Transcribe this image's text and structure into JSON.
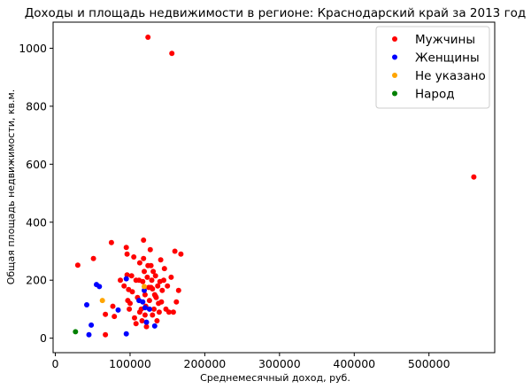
{
  "chart_data": {
    "type": "scatter",
    "title": "Доходы и площадь недвижимости в регионе: Краснодарский край за 2013 год",
    "xlabel": "Среднемесячный доход, руб.",
    "ylabel": "Общая площадь недвижимости, кв.м.",
    "xlim": [
      -3000,
      588000
    ],
    "ylim": [
      -50,
      1090
    ],
    "x_ticks": [
      0,
      100000,
      200000,
      300000,
      400000,
      500000
    ],
    "x_tick_labels": [
      "0",
      "100000",
      "200000",
      "300000",
      "400000",
      "500000"
    ],
    "y_ticks": [
      0,
      200,
      400,
      600,
      800,
      1000
    ],
    "y_tick_labels": [
      "0",
      "200",
      "400",
      "600",
      "800",
      "1000"
    ],
    "grid": false,
    "legend_position": "top-right",
    "series": [
      {
        "name": "Мужчины",
        "color": "#ff0000",
        "points": [
          [
            124000,
            1038
          ],
          [
            156000,
            982
          ],
          [
            560000,
            556
          ],
          [
            30000,
            252
          ],
          [
            51000,
            275
          ],
          [
            67000,
            12
          ],
          [
            67000,
            82
          ],
          [
            75000,
            330
          ],
          [
            77000,
            110
          ],
          [
            79000,
            75
          ],
          [
            87000,
            200
          ],
          [
            92000,
            180
          ],
          [
            95000,
            313
          ],
          [
            96000,
            290
          ],
          [
            96000,
            218
          ],
          [
            97000,
            130
          ],
          [
            98000,
            168
          ],
          [
            99000,
            100
          ],
          [
            100000,
            120
          ],
          [
            102000,
            215
          ],
          [
            103000,
            160
          ],
          [
            105000,
            280
          ],
          [
            106000,
            70
          ],
          [
            108000,
            50
          ],
          [
            110000,
            140
          ],
          [
            112000,
            200
          ],
          [
            113000,
            260
          ],
          [
            115000,
            100
          ],
          [
            116000,
            60
          ],
          [
            117000,
            195
          ],
          [
            118000,
            338
          ],
          [
            118000,
            275
          ],
          [
            119000,
            230
          ],
          [
            120000,
            150
          ],
          [
            120000,
            80
          ],
          [
            121000,
            110
          ],
          [
            122000,
            40
          ],
          [
            123000,
            210
          ],
          [
            124000,
            250
          ],
          [
            125000,
            175
          ],
          [
            126000,
            130
          ],
          [
            127000,
            305
          ],
          [
            128000,
            250
          ],
          [
            129000,
            200
          ],
          [
            130000,
            80
          ],
          [
            130000,
            170
          ],
          [
            131000,
            230
          ],
          [
            132000,
            100
          ],
          [
            133000,
            150
          ],
          [
            134000,
            215
          ],
          [
            135000,
            140
          ],
          [
            136000,
            60
          ],
          [
            137000,
            180
          ],
          [
            138000,
            120
          ],
          [
            139000,
            90
          ],
          [
            140000,
            195
          ],
          [
            141000,
            270
          ],
          [
            142000,
            125
          ],
          [
            143000,
            165
          ],
          [
            145000,
            200
          ],
          [
            146000,
            240
          ],
          [
            148000,
            100
          ],
          [
            150000,
            180
          ],
          [
            152000,
            90
          ],
          [
            155000,
            210
          ],
          [
            158000,
            90
          ],
          [
            160000,
            300
          ],
          [
            162000,
            125
          ],
          [
            165000,
            165
          ],
          [
            168000,
            290
          ],
          [
            108000,
            200
          ],
          [
            113000,
            90
          ],
          [
            128000,
            175
          ],
          [
            134000,
            145
          ]
        ]
      },
      {
        "name": "Женщины",
        "color": "#0000ff",
        "points": [
          [
            42000,
            115
          ],
          [
            45000,
            12
          ],
          [
            48000,
            45
          ],
          [
            55000,
            185
          ],
          [
            59000,
            178
          ],
          [
            84000,
            97
          ],
          [
            95000,
            205
          ],
          [
            95000,
            15
          ],
          [
            112000,
            130
          ],
          [
            117000,
            125
          ],
          [
            119000,
            165
          ],
          [
            120000,
            105
          ],
          [
            122000,
            55
          ],
          [
            126000,
            100
          ],
          [
            133000,
            42
          ]
        ]
      },
      {
        "name": "Не указано",
        "color": "#ffa500",
        "points": [
          [
            63000,
            130
          ],
          [
            119000,
            178
          ]
        ]
      },
      {
        "name": "Народ",
        "color": "#008000",
        "points": [
          [
            27000,
            22
          ]
        ]
      }
    ]
  }
}
